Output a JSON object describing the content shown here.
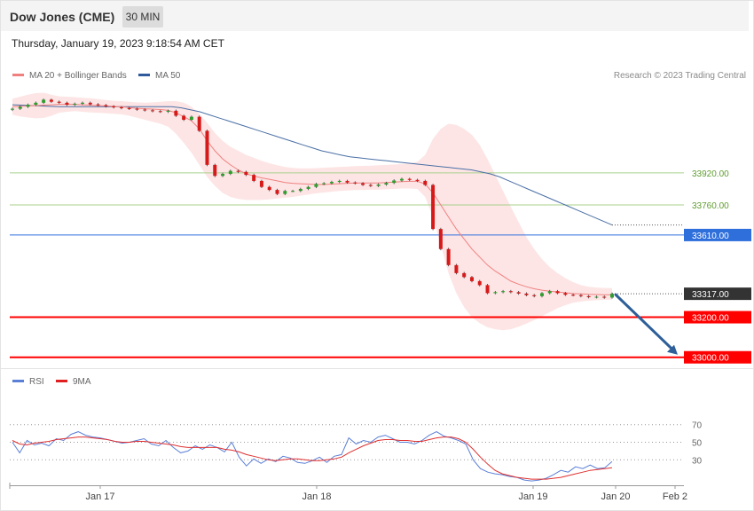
{
  "header": {
    "title": "Dow Jones (CME)",
    "timeframe": "30 MIN",
    "timestamp": "Thursday, January 19, 2023 9:18:54 AM CET"
  },
  "legend": {
    "ma20_bb": "MA 20 + Bollinger Bands",
    "ma50": "MA 50",
    "copyright": "Research © 2023 Trading Central"
  },
  "rsi_legend": {
    "rsi": "RSI",
    "ma9": "9MA"
  },
  "colors": {
    "up": "#2f9e2f",
    "down": "#d61a1a",
    "ma20": "#f08080",
    "bb_fill": "#fde2e2",
    "ma50": "#4a6fa5",
    "support": "#ff0000",
    "resistance": "#a8d08d",
    "pivot": "#2f6fdc",
    "last": "#333333",
    "arrow": "#2e5f98",
    "rsi": "#5b7fd6",
    "rsi_ma": "#e03030"
  },
  "chart_data": [
    {
      "type": "candlestick",
      "title": "Dow Jones (CME)",
      "interval": "30 MIN",
      "ylim": [
        32990,
        34340
      ],
      "x_ticks": [
        "Jan 17",
        "Jan 18",
        "Jan 19",
        "Jan 20",
        "Feb 2"
      ],
      "levels": [
        {
          "label": "33920.00",
          "value": 33920,
          "kind": "resistance"
        },
        {
          "label": "33760.00",
          "value": 33760,
          "kind": "resistance"
        },
        {
          "label": "33610.00",
          "value": 33610,
          "kind": "pivot"
        },
        {
          "label": "33317.00",
          "value": 33317,
          "kind": "last"
        },
        {
          "label": "33200.00",
          "value": 33200,
          "kind": "support"
        },
        {
          "label": "33000.00",
          "value": 33000,
          "kind": "support"
        }
      ],
      "ma50_tail": 33660,
      "projection": {
        "from": 33317,
        "to": 33000,
        "direction": "down"
      },
      "closes": [
        34240,
        34250,
        34260,
        34270,
        34285,
        34275,
        34270,
        34260,
        34265,
        34270,
        34262,
        34258,
        34252,
        34247,
        34243,
        34240,
        34236,
        34232,
        34228,
        34225,
        34230,
        34205,
        34185,
        34200,
        34130,
        33960,
        33905,
        33915,
        33930,
        33925,
        33910,
        33880,
        33850,
        33835,
        33815,
        33830,
        33830,
        33840,
        33850,
        33865,
        33868,
        33875,
        33880,
        33872,
        33868,
        33860,
        33855,
        33862,
        33870,
        33882,
        33890,
        33885,
        33880,
        33860,
        33640,
        33540,
        33460,
        33420,
        33400,
        33380,
        33360,
        33320,
        33325,
        33330,
        33325,
        33318,
        33310,
        33305,
        33320,
        33330,
        33320,
        33312,
        33310,
        33305,
        33300,
        33302,
        33298,
        33317
      ],
      "ma20": [
        34250,
        34252,
        34254,
        34256,
        34258,
        34260,
        34262,
        34262,
        34262,
        34260,
        34258,
        34256,
        34254,
        34252,
        34250,
        34246,
        34242,
        34240,
        34238,
        34236,
        34232,
        34220,
        34200,
        34180,
        34140,
        34080,
        34030,
        33990,
        33960,
        33935,
        33915,
        33905,
        33895,
        33888,
        33880,
        33872,
        33868,
        33866,
        33864,
        33862,
        33862,
        33864,
        33866,
        33868,
        33870,
        33870,
        33870,
        33870,
        33872,
        33874,
        33876,
        33878,
        33878,
        33865,
        33820,
        33760,
        33700,
        33640,
        33590,
        33540,
        33500,
        33460,
        33430,
        33405,
        33380,
        33365,
        33352,
        33342,
        33335,
        33330,
        33326,
        33322,
        33318,
        33316,
        33314,
        33313,
        33312,
        33312
      ],
      "bb_upper": [
        34290,
        34300,
        34310,
        34318,
        34320,
        34310,
        34302,
        34300,
        34298,
        34295,
        34292,
        34288,
        34284,
        34280,
        34278,
        34275,
        34272,
        34270,
        34272,
        34275,
        34278,
        34278,
        34270,
        34250,
        34215,
        34170,
        34120,
        34080,
        34050,
        34030,
        34010,
        33995,
        33980,
        33968,
        33958,
        33950,
        33945,
        33943,
        33943,
        33944,
        33946,
        33948,
        33950,
        33952,
        33954,
        33955,
        33956,
        33958,
        33960,
        33962,
        33964,
        33968,
        33975,
        34010,
        34090,
        34140,
        34165,
        34160,
        34140,
        34110,
        34060,
        33990,
        33910,
        33830,
        33750,
        33675,
        33600,
        33540,
        33490,
        33450,
        33420,
        33395,
        33375,
        33360,
        33352,
        33348,
        33346,
        33345
      ],
      "bb_lower": [
        34210,
        34202,
        34196,
        34192,
        34194,
        34205,
        34220,
        34225,
        34228,
        34225,
        34222,
        34220,
        34218,
        34215,
        34212,
        34205,
        34195,
        34185,
        34175,
        34165,
        34150,
        34115,
        34070,
        34020,
        33960,
        33900,
        33855,
        33820,
        33800,
        33790,
        33785,
        33785,
        33785,
        33788,
        33792,
        33796,
        33800,
        33806,
        33812,
        33818,
        33822,
        33826,
        33830,
        33832,
        33834,
        33835,
        33836,
        33836,
        33838,
        33840,
        33842,
        33842,
        33840,
        33800,
        33700,
        33560,
        33420,
        33320,
        33250,
        33200,
        33170,
        33150,
        33140,
        33135,
        33140,
        33152,
        33168,
        33185,
        33205,
        33225,
        33245,
        33260,
        33272,
        33278,
        33282,
        33285,
        33286,
        33288
      ],
      "ma50": [
        34260,
        34258,
        34256,
        34254,
        34252,
        34250,
        34250,
        34250,
        34250,
        34250,
        34250,
        34250,
        34250,
        34250,
        34250,
        34250,
        34250,
        34250,
        34245,
        34235,
        34225,
        34210,
        34195,
        34180,
        34165,
        34150,
        34135,
        34120,
        34105,
        34090,
        34075,
        34060,
        34045,
        34030,
        34020,
        34010,
        34000,
        33995,
        33990,
        33985,
        33980,
        33975,
        33970,
        33965,
        33960,
        33955,
        33950,
        33945,
        33940,
        33935,
        33925,
        33915,
        33900,
        33880,
        33860,
        33840,
        33820,
        33800,
        33780,
        33760,
        33740,
        33720,
        33700,
        33680,
        33660
      ]
    },
    {
      "type": "line",
      "title": "RSI",
      "ylim": [
        0,
        100
      ],
      "y_ticks": [
        70,
        50,
        30
      ],
      "series": [
        {
          "name": "RSI",
          "values": [
            50,
            38,
            52,
            47,
            49,
            46,
            54,
            52,
            59,
            62,
            58,
            56,
            55,
            53,
            51,
            49,
            50,
            52,
            54,
            48,
            46,
            52,
            44,
            38,
            40,
            46,
            42,
            47,
            44,
            39,
            50,
            33,
            23,
            31,
            26,
            31,
            28,
            34,
            32,
            27,
            26,
            29,
            33,
            27,
            34,
            36,
            55,
            48,
            52,
            50,
            56,
            58,
            54,
            50,
            50,
            48,
            52,
            58,
            62,
            57,
            55,
            52,
            48,
            30,
            20,
            16,
            14,
            13,
            11,
            10,
            7,
            6,
            7,
            9,
            13,
            18,
            16,
            22,
            20,
            24,
            20,
            21,
            28
          ]
        },
        {
          "name": "9MA",
          "values": [
            52,
            48,
            47,
            49,
            50,
            51,
            53,
            54,
            55,
            56,
            56,
            55,
            54,
            53,
            51,
            50,
            50,
            51,
            51,
            50,
            49,
            48,
            47,
            45,
            44,
            44,
            44,
            44,
            44,
            42,
            41,
            39,
            36,
            34,
            32,
            30,
            29,
            30,
            31,
            31,
            30,
            29,
            29,
            30,
            31,
            33,
            38,
            42,
            46,
            49,
            52,
            53,
            53,
            52,
            52,
            51,
            51,
            53,
            55,
            56,
            56,
            54,
            50,
            42,
            33,
            25,
            18,
            14,
            12,
            10,
            9,
            8,
            8,
            8,
            9,
            10,
            12,
            14,
            16,
            18,
            19,
            20,
            21
          ]
        }
      ]
    }
  ]
}
